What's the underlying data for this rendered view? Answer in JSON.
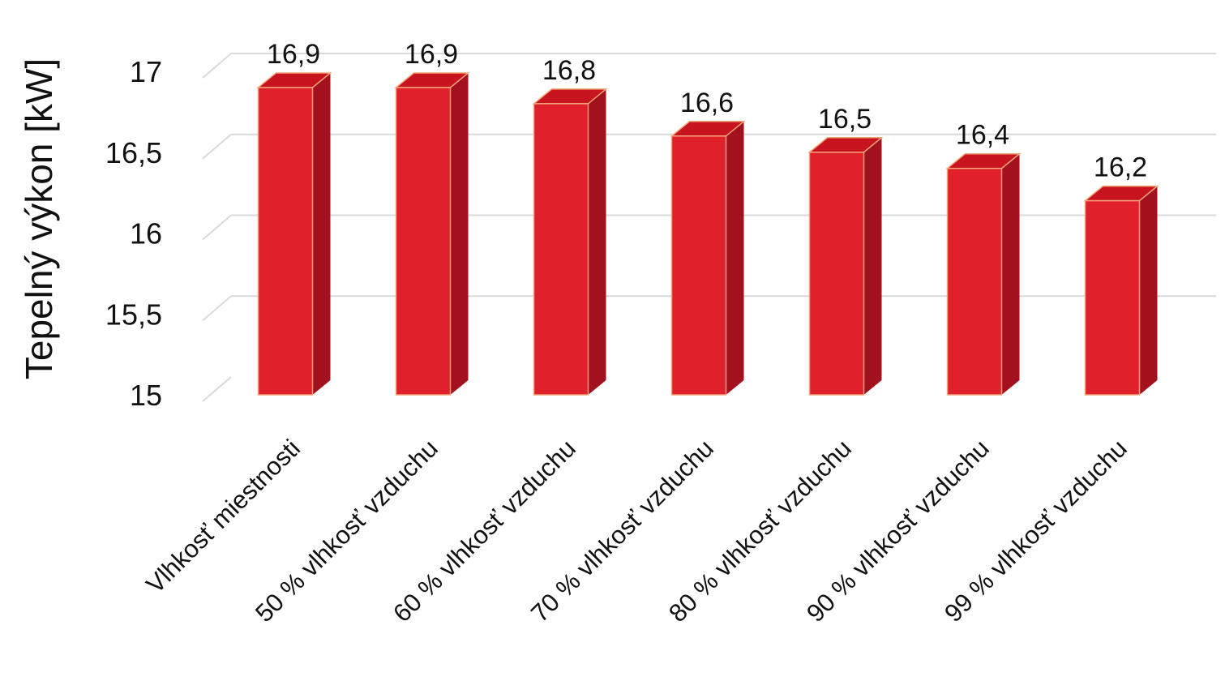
{
  "chart_data": {
    "type": "bar",
    "style": "3d-column",
    "ylabel": "Tepelný výkon [kW]",
    "xlabel": "",
    "ylim": [
      15,
      17
    ],
    "yticks": [
      15,
      15.5,
      16,
      16.5,
      17
    ],
    "ytick_labels": [
      "15",
      "15,5",
      "16",
      "16,5",
      "17"
    ],
    "grid": true,
    "categories": [
      "Vlhkosť miestnosti",
      "50 % vlhkosť vzduchu",
      "60 % vlhkosť vzduchu",
      "70 % vlhkosť vzduchu",
      "80 % vlhkosť vzduchu",
      "90 % vlhkosť vzduchu",
      "99 % vlhkosť vzduchu"
    ],
    "values": [
      16.9,
      16.9,
      16.8,
      16.6,
      16.5,
      16.4,
      16.2
    ],
    "value_labels": [
      "16,9",
      "16,9",
      "16,8",
      "16,6",
      "16,5",
      "16,4",
      "16,2"
    ],
    "colors": {
      "bar_front": "#e0202a",
      "bar_side": "#a3111e",
      "bar_top": "#c8141f",
      "bar_edge": "#f2a57a",
      "grid": "#d9d9d9"
    }
  }
}
